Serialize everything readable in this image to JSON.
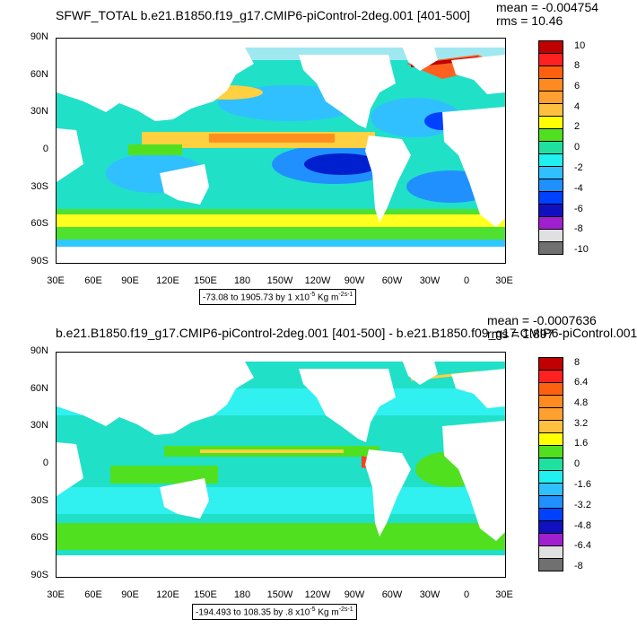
{
  "panels": [
    {
      "title": "SFWF_TOTAL b.e21.B1850.f19_g17.CMIP6-piControl-2deg.001 [401-500]",
      "mean": "mean = -0.004754",
      "rms": "rms = 10.46",
      "range_prefix": "-73.08 to 1905.73 by 1 x10",
      "range_exp": "-5",
      "range_unit": " Kg m",
      "range_unit_exp": "-2s-1",
      "legend_labels": [
        "10",
        "8",
        "6",
        "4",
        "2",
        "0",
        "-2",
        "-4",
        "-6",
        "-8",
        "-10"
      ]
    },
    {
      "title": "b.e21.B1850.f19_g17.CMIP6-piControl-2deg.001 [401-500] - b.e21.B1850.f09_g17.CMIP6-piControl.001",
      "mean": "mean = -0.0007636",
      "rms": "rms = 1.897",
      "range_prefix": "-194.493 to 108.35 by .8 x10",
      "range_exp": "-5",
      "range_unit": " Kg m",
      "range_unit_exp": "-2s-1",
      "legend_labels": [
        "8",
        "6.4",
        "4.8",
        "3.2",
        "1.6",
        "0",
        "-1.6",
        "-3.2",
        "-4.8",
        "-6.4",
        "-8"
      ]
    }
  ],
  "axes": {
    "y_labels": [
      "90N",
      "60N",
      "30N",
      "0",
      "30S",
      "60S",
      "90S"
    ],
    "x_labels": [
      "30E",
      "60E",
      "90E",
      "120E",
      "150E",
      "180",
      "150W",
      "120W",
      "90W",
      "60W",
      "30W",
      "0",
      "30E"
    ]
  },
  "colors": {
    "legend_scale": [
      "#c00000",
      "#ff2020",
      "#ff8a20",
      "#ffb030",
      "#ffd040",
      "#ffff00",
      "#50e020",
      "#20e0a0",
      "#20f0f0",
      "#30c0ff",
      "#2090ff",
      "#0040ff",
      "#1010c0",
      "#a020d0",
      "#e0e0e0",
      "#707070"
    ]
  }
}
